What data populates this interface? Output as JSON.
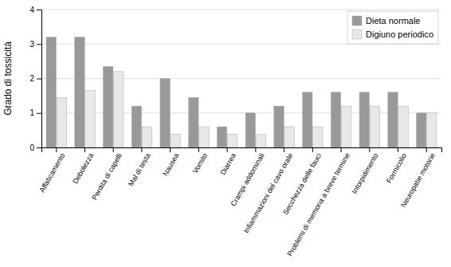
{
  "chart_data": {
    "type": "bar",
    "categories": [
      "Affaticamento",
      "Debolezza",
      "Perdita di capelli",
      "Mal di testa",
      "Nausea",
      "Vomito",
      "Diarrea",
      "Crampi addominali",
      "Infiammazioni del cavo orale",
      "Secchezza delle fauci",
      "Problemi di memoria a breve termine",
      "Intorpidimento",
      "Formicolio",
      "Neuropatie motorie"
    ],
    "series": [
      {
        "name": "Dieta normale",
        "color": "#999999",
        "values": [
          3.2,
          3.2,
          2.35,
          1.2,
          2.0,
          1.45,
          0.6,
          1.0,
          1.2,
          1.6,
          1.6,
          1.6,
          1.6,
          1.0
        ]
      },
      {
        "name": "Digiuno periodico",
        "color": "#e8e8e8",
        "values": [
          1.45,
          1.65,
          2.2,
          0.6,
          0.38,
          0.6,
          0.38,
          0.38,
          0.6,
          0.6,
          1.2,
          1.2,
          1.2,
          1.0
        ]
      }
    ],
    "ylabel": "Grado di tossicità",
    "ylim": [
      0,
      4
    ],
    "yticks": [
      0,
      1,
      2,
      3,
      4
    ],
    "grid": true,
    "legend": "upper right"
  }
}
